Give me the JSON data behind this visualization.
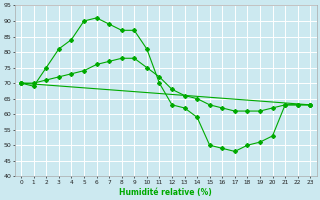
{
  "xlabel": "Humidité relative (%)",
  "xlim": [
    -0.5,
    23.5
  ],
  "ylim": [
    40,
    95
  ],
  "yticks": [
    40,
    45,
    50,
    55,
    60,
    65,
    70,
    75,
    80,
    85,
    90,
    95
  ],
  "xticks": [
    0,
    1,
    2,
    3,
    4,
    5,
    6,
    7,
    8,
    9,
    10,
    11,
    12,
    13,
    14,
    15,
    16,
    17,
    18,
    19,
    20,
    21,
    22,
    23
  ],
  "background_color": "#cce9f0",
  "grid_color": "#ffffff",
  "line_color": "#00aa00",
  "line1_x": [
    0,
    1,
    2,
    3,
    4,
    5,
    6,
    7,
    8,
    9,
    10,
    11,
    12,
    13,
    14,
    15,
    16,
    17,
    18,
    19,
    20,
    21,
    22,
    23
  ],
  "line1_y": [
    70,
    69,
    75,
    81,
    84,
    90,
    91,
    89,
    87,
    87,
    81,
    70,
    63,
    62,
    59,
    50,
    49,
    48,
    50,
    51,
    53,
    63,
    63,
    63
  ],
  "line2_x": [
    0,
    1,
    2,
    3,
    4,
    5,
    6,
    7,
    8,
    9,
    10,
    11,
    12,
    13,
    14,
    15,
    16,
    17,
    18,
    19,
    20,
    21,
    22,
    23
  ],
  "line2_y": [
    70,
    70,
    71,
    72,
    73,
    74,
    76,
    77,
    78,
    78,
    75,
    72,
    68,
    66,
    65,
    63,
    62,
    61,
    61,
    61,
    62,
    63,
    63,
    63
  ],
  "line3_x": [
    0,
    23
  ],
  "line3_y": [
    70,
    63
  ]
}
